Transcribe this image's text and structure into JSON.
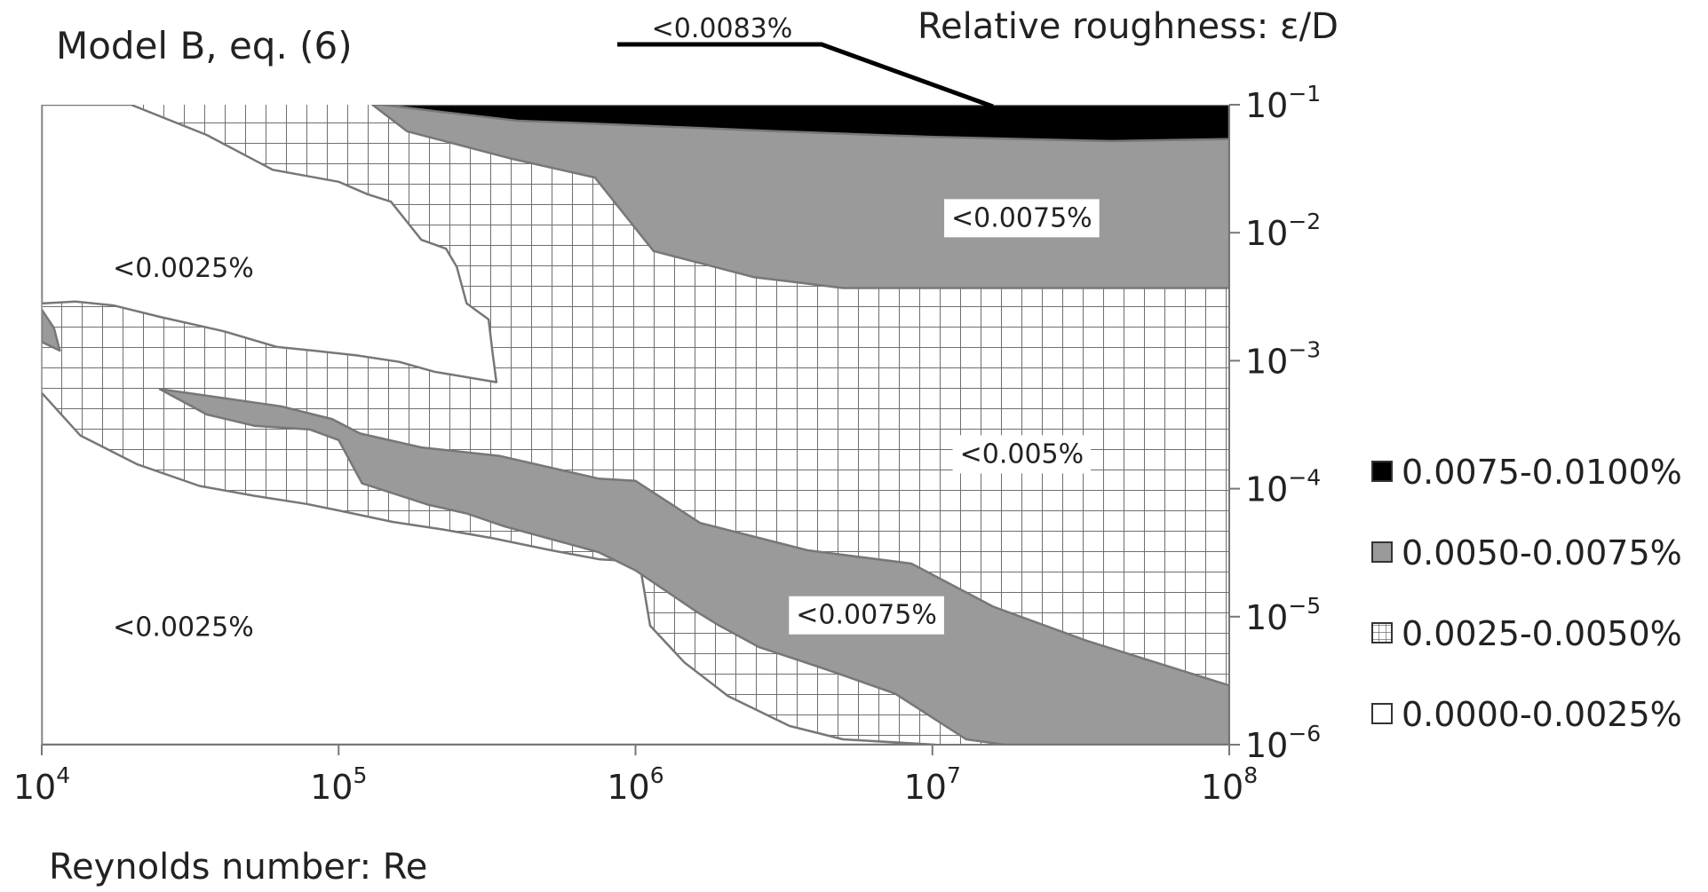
{
  "chart_data": {
    "type": "heatmap",
    "title": "Model B, eq. (6)",
    "xlabel": "Reynolds number: Re",
    "ylabel": "Relative roughness: ε/D",
    "x_scale": "log",
    "y_scale": "log",
    "xlim": [
      10000,
      100000000
    ],
    "ylim": [
      1e-06,
      0.1
    ],
    "x_ticks": [
      {
        "value": 10000,
        "base": "10",
        "exp": "4"
      },
      {
        "value": 100000,
        "base": "10",
        "exp": "5"
      },
      {
        "value": 1000000,
        "base": "10",
        "exp": "6"
      },
      {
        "value": 10000000,
        "base": "10",
        "exp": "7"
      },
      {
        "value": 100000000,
        "base": "10",
        "exp": "8"
      }
    ],
    "y_ticks": [
      {
        "value": 0.1,
        "base": "10",
        "exp": "−1"
      },
      {
        "value": 0.01,
        "base": "10",
        "exp": "−2"
      },
      {
        "value": 0.001,
        "base": "10",
        "exp": "−3"
      },
      {
        "value": 0.0001,
        "base": "10",
        "exp": "−4"
      },
      {
        "value": 1e-05,
        "base": "10",
        "exp": "−5"
      },
      {
        "value": 1e-06,
        "base": "10",
        "exp": "−6"
      }
    ],
    "legend_position": "right",
    "legend": [
      {
        "label": "0.0075-0.0100%",
        "style": "black"
      },
      {
        "label": "0.0050-0.0075%",
        "style": "gray"
      },
      {
        "label": "0.0025-0.0050%",
        "style": "grid"
      },
      {
        "label": "0.0000-0.0025%",
        "style": "white"
      }
    ],
    "colors": {
      "black": "#000000",
      "gray": "#9a9a9a",
      "grid_line": "#6f6f6f",
      "outline": "#777777"
    },
    "annotations": [
      {
        "text": "<0.0083%",
        "x": 3000000,
        "y": 0.1,
        "leader": true
      },
      {
        "text": "<0.0075%",
        "x": 20000000,
        "y": 0.0133
      },
      {
        "text": "<0.0025%",
        "x": 30000,
        "y": 0.0054
      },
      {
        "text": "<0.005%",
        "x": 20000000,
        "y": 0.00019
      },
      {
        "text": "<0.0075%",
        "x": 6000000,
        "y": 1.05e-05
      },
      {
        "text": "<0.0025%",
        "x": 30000,
        "y": 8.4e-06
      }
    ],
    "regions": [
      {
        "name": "region-band-0.0025-0.0050",
        "style": "grid",
        "points": [
          [
            10000,
            0.1
          ],
          [
            100000000,
            0.1
          ],
          [
            100000000,
            1e-06
          ],
          [
            10000,
            1e-06
          ]
        ]
      },
      {
        "name": "region-lower-left-below-0.0025",
        "style": "white",
        "points": [
          [
            10000,
            0.00056
          ],
          [
            13500,
            0.00026
          ],
          [
            21000,
            0.000155
          ],
          [
            34000,
            0.000105
          ],
          [
            52000,
            8.8e-05
          ],
          [
            78000,
            7.6e-05
          ],
          [
            105000,
            6.6e-05
          ],
          [
            152000,
            5.5e-05
          ],
          [
            225000,
            4.8e-05
          ],
          [
            330000,
            4.1e-05
          ],
          [
            520000,
            3.3e-05
          ],
          [
            760000,
            2.8e-05
          ],
          [
            1030000,
            2.7e-05
          ],
          [
            1120000,
            8.5e-06
          ],
          [
            1460000,
            4.4e-06
          ],
          [
            2050000,
            2.4e-06
          ],
          [
            3300000,
            1.4e-06
          ],
          [
            5000000,
            1.1e-06
          ],
          [
            10200000,
            1e-06
          ],
          [
            10000,
            1e-06
          ]
        ]
      },
      {
        "name": "region-upper-left-below-0.0025",
        "style": "white",
        "points": [
          [
            10000,
            0.1
          ],
          [
            20000,
            0.1
          ],
          [
            36000,
            0.058
          ],
          [
            60000,
            0.031
          ],
          [
            100000,
            0.025
          ],
          [
            125000,
            0.02
          ],
          [
            150000,
            0.0175
          ],
          [
            190000,
            0.0088
          ],
          [
            230000,
            0.0075
          ],
          [
            250000,
            0.0054
          ],
          [
            270000,
            0.0028
          ],
          [
            320000,
            0.0021
          ],
          [
            330000,
            0.00115
          ],
          [
            340000,
            0.00068
          ],
          [
            210000,
            0.00082
          ],
          [
            160000,
            0.00098
          ],
          [
            115000,
            0.0011
          ],
          [
            82000,
            0.0012
          ],
          [
            62000,
            0.00128
          ],
          [
            41000,
            0.0017
          ],
          [
            25000,
            0.0022
          ],
          [
            17500,
            0.0027
          ],
          [
            13000,
            0.0029
          ],
          [
            10000,
            0.0028
          ]
        ]
      },
      {
        "name": "region-top-band-0.0050-0.0075",
        "style": "gray",
        "points": [
          [
            130000,
            0.1
          ],
          [
            100000000,
            0.1
          ],
          [
            100000000,
            0.0037
          ],
          [
            5000000,
            0.0037
          ],
          [
            2500000,
            0.0045
          ],
          [
            1150000,
            0.0072
          ],
          [
            730000,
            0.027
          ],
          [
            380000,
            0.038
          ],
          [
            170000,
            0.062
          ]
        ]
      },
      {
        "name": "region-top-0.0075-0.0100",
        "style": "black",
        "points": [
          [
            140000,
            0.1
          ],
          [
            100000000,
            0.1
          ],
          [
            100000000,
            0.054
          ],
          [
            40000000,
            0.052
          ],
          [
            10000000,
            0.056
          ],
          [
            3000000,
            0.062
          ],
          [
            1000000,
            0.069
          ],
          [
            400000,
            0.075
          ],
          [
            220000,
            0.088
          ]
        ]
      },
      {
        "name": "region-diagonal-band-0.0050-0.0075",
        "style": "gray",
        "points": [
          [
            25000,
            0.0006
          ],
          [
            31000,
            0.00056
          ],
          [
            64000,
            0.00044
          ],
          [
            95000,
            0.00035
          ],
          [
            118000,
            0.00027
          ],
          [
            190000,
            0.00021
          ],
          [
            350000,
            0.00018
          ],
          [
            750000,
            0.00012
          ],
          [
            1000000,
            0.000115
          ],
          [
            1650000,
            5.4e-05
          ],
          [
            3800000,
            3.3e-05
          ],
          [
            8500000,
            2.6e-05
          ],
          [
            16000000,
            1.2e-05
          ],
          [
            33000000,
            6.5e-06
          ],
          [
            100000000,
            2.9e-06
          ],
          [
            100000000,
            1e-06
          ],
          [
            17500000,
            1e-06
          ],
          [
            13000000,
            1.1e-06
          ],
          [
            7500000,
            2.5e-06
          ],
          [
            4500000,
            3.8e-06
          ],
          [
            2600000,
            5.8e-06
          ],
          [
            1900000,
            8.6e-06
          ],
          [
            1600000,
            1.1e-05
          ],
          [
            1000000,
            2.3e-05
          ],
          [
            750000,
            3.2e-05
          ],
          [
            360000,
            5.1e-05
          ],
          [
            270000,
            6.4e-05
          ],
          [
            200000,
            7.5e-05
          ],
          [
            120000,
            0.00011
          ],
          [
            100000,
            0.00024
          ],
          [
            80000,
            0.00029
          ],
          [
            52000,
            0.00031
          ],
          [
            36000,
            0.00038
          ],
          [
            28000,
            0.00052
          ]
        ]
      },
      {
        "name": "region-left-edge-0.0050-0.0075",
        "style": "gray",
        "points": [
          [
            10000,
            0.0025
          ],
          [
            11000,
            0.0018
          ],
          [
            11500,
            0.0012
          ],
          [
            10000,
            0.0014
          ]
        ]
      }
    ]
  }
}
